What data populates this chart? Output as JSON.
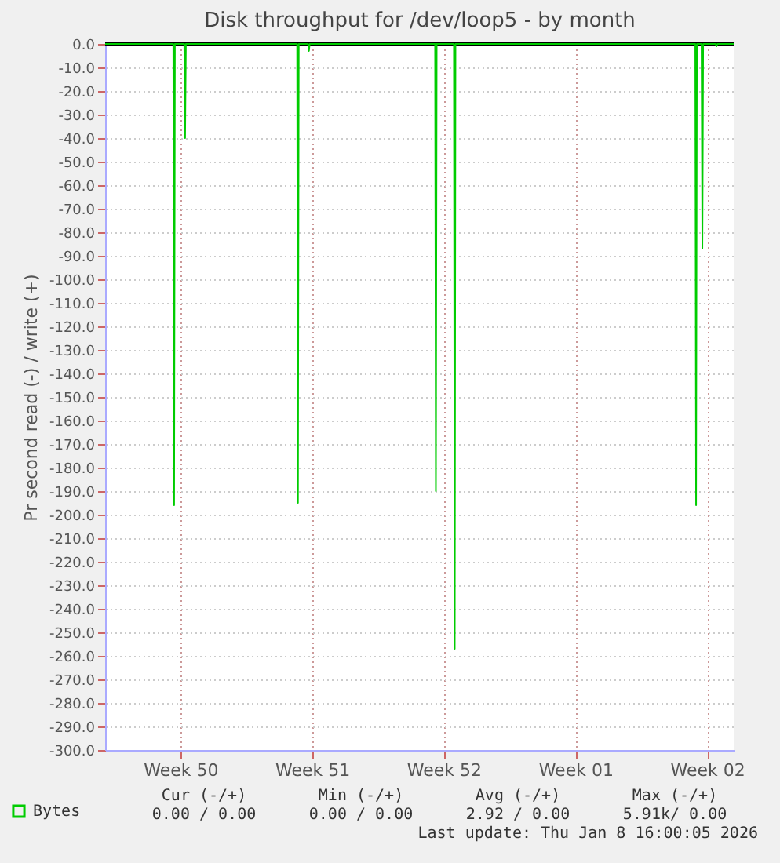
{
  "chart_data": {
    "type": "line",
    "title": "Disk throughput for /dev/loop5 - by month",
    "ylabel": "Pr second read (-) / write (+)",
    "x": [
      "2025-12-07T12:00",
      "2025-12-11T03:00",
      "2025-12-11T04:00",
      "2025-12-11T05:00",
      "2025-12-11T17:00",
      "2025-12-11T18:00",
      "2025-12-11T19:00",
      "2025-12-17T17:00",
      "2025-12-17T18:00",
      "2025-12-17T19:00",
      "2025-12-18T07:00",
      "2025-12-18T08:00",
      "2025-12-18T09:00",
      "2025-12-25T01:00",
      "2025-12-25T02:00",
      "2025-12-25T03:00",
      "2025-12-26T01:00",
      "2025-12-26T02:00",
      "2025-12-26T03:00",
      "2026-01-07T21:00",
      "2026-01-07T22:00",
      "2026-01-07T23:00",
      "2026-01-08T05:00",
      "2026-01-08T06:00",
      "2026-01-08T07:00",
      "2026-01-08T23:00",
      "2026-01-09T00:00",
      "2026-01-09T01:00",
      "2026-01-09T23:00"
    ],
    "series": [
      {
        "name": "Bytes",
        "color": "#00cc00",
        "values": [
          0,
          0,
          -196,
          0,
          0,
          -40,
          0,
          0,
          -195,
          0,
          0,
          -3,
          0,
          0,
          -190,
          0,
          0,
          -257,
          0,
          0,
          -196,
          0,
          0,
          -87,
          0,
          0,
          -1,
          0,
          0
        ]
      }
    ],
    "xlim": [
      "2025-12-07T12:00",
      "2026-01-09T23:00"
    ],
    "xticks": [
      {
        "value": "2025-12-11T12:00",
        "label": "Week 50"
      },
      {
        "value": "2025-12-18T12:00",
        "label": "Week 51"
      },
      {
        "value": "2025-12-25T12:00",
        "label": "Week 52"
      },
      {
        "value": "2026-01-01T12:00",
        "label": "Week 01"
      },
      {
        "value": "2026-01-08T12:00",
        "label": "Week 02"
      }
    ],
    "ylim": [
      -300,
      0
    ],
    "yticks": [
      {
        "value": 0,
        "label": "0.0"
      },
      {
        "value": -10,
        "label": "-10.0"
      },
      {
        "value": -20,
        "label": "-20.0"
      },
      {
        "value": -30,
        "label": "-30.0"
      },
      {
        "value": -40,
        "label": "-40.0"
      },
      {
        "value": -50,
        "label": "-50.0"
      },
      {
        "value": -60,
        "label": "-60.0"
      },
      {
        "value": -70,
        "label": "-70.0"
      },
      {
        "value": -80,
        "label": "-80.0"
      },
      {
        "value": -90,
        "label": "-90.0"
      },
      {
        "value": -100,
        "label": "-100.0"
      },
      {
        "value": -110,
        "label": "-110.0"
      },
      {
        "value": -120,
        "label": "-120.0"
      },
      {
        "value": -130,
        "label": "-130.0"
      },
      {
        "value": -140,
        "label": "-140.0"
      },
      {
        "value": -150,
        "label": "-150.0"
      },
      {
        "value": -160,
        "label": "-160.0"
      },
      {
        "value": -170,
        "label": "-170.0"
      },
      {
        "value": -180,
        "label": "-180.0"
      },
      {
        "value": -190,
        "label": "-190.0"
      },
      {
        "value": -200,
        "label": "-200.0"
      },
      {
        "value": -210,
        "label": "-210.0"
      },
      {
        "value": -220,
        "label": "-220.0"
      },
      {
        "value": -230,
        "label": "-230.0"
      },
      {
        "value": -240,
        "label": "-240.0"
      },
      {
        "value": -250,
        "label": "-250.0"
      },
      {
        "value": -260,
        "label": "-260.0"
      },
      {
        "value": -270,
        "label": "-270.0"
      },
      {
        "value": -280,
        "label": "-280.0"
      },
      {
        "value": -290,
        "label": "-290.0"
      },
      {
        "value": -300,
        "label": "-300.0"
      }
    ],
    "ref_lines": [
      {
        "axis": "y",
        "value": 0,
        "color": "#000000"
      }
    ],
    "grid": true,
    "legend": "bottom left",
    "marker": "none",
    "line_style": "solid",
    "annotations": [
      "Cur (-/+)",
      "Min (-/+)",
      "Avg (-/+)",
      "Max (-/+)",
      "0.00 /  0.00",
      "0.00 /  0.00",
      "2.92 /  0.00",
      "5.91k/  0.00",
      "Last update: Thu Jan  8 16:00:05 2026"
    ]
  }
}
